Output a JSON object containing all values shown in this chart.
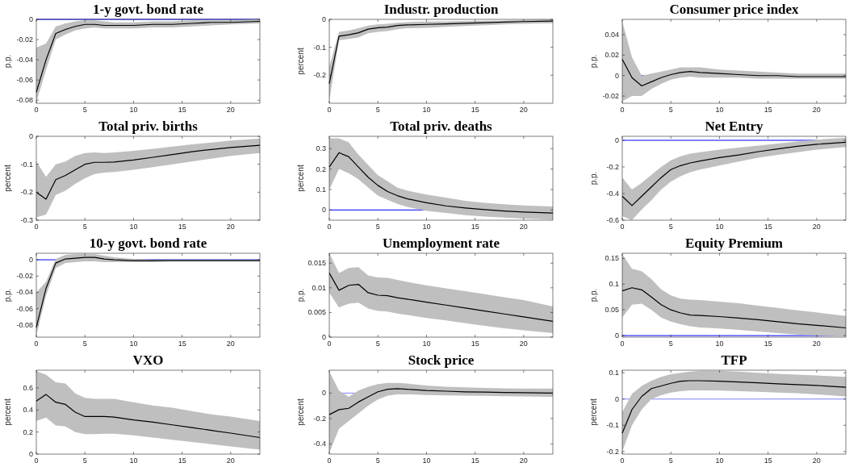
{
  "chart_data": [
    {
      "type": "line",
      "title": "1-y govt. bond rate",
      "ylabel": "p.p.",
      "x": [
        0,
        1,
        2,
        3,
        4,
        5,
        6,
        7,
        8,
        10,
        12,
        14,
        16,
        18,
        20,
        23
      ],
      "xlim": [
        0,
        23
      ],
      "xticks": [
        0,
        5,
        10,
        15,
        20
      ],
      "ylim": [
        -0.083,
        0
      ],
      "yticks": [
        -0.08,
        -0.06,
        -0.04,
        -0.02,
        0
      ],
      "ref_lines": [
        {
          "axis": "y",
          "value": 0,
          "color": "#0000ff"
        }
      ],
      "series": [
        {
          "color": "#000000",
          "values": [
            -0.072,
            -0.04,
            -0.014,
            -0.01,
            -0.007,
            -0.005,
            -0.005,
            -0.006,
            -0.006,
            -0.006,
            -0.005,
            -0.005,
            -0.004,
            -0.003,
            -0.003,
            -0.002
          ],
          "lower": [
            -0.082,
            -0.05,
            -0.02,
            -0.015,
            -0.011,
            -0.009,
            -0.008,
            -0.009,
            -0.009,
            -0.009,
            -0.008,
            -0.008,
            -0.007,
            -0.006,
            -0.005,
            -0.004
          ],
          "upper": [
            -0.028,
            -0.024,
            -0.007,
            -0.004,
            -0.002,
            -0.001,
            -0.001,
            -0.002,
            -0.003,
            -0.003,
            -0.002,
            -0.002,
            -0.001,
            -0.001,
            -0.001,
            0
          ]
        }
      ]
    },
    {
      "type": "line",
      "title": "Industr. production",
      "ylabel": "percent",
      "x": [
        0,
        1,
        2,
        3,
        4,
        5,
        6,
        7,
        8,
        10,
        12,
        14,
        16,
        18,
        20,
        23
      ],
      "xlim": [
        0,
        23
      ],
      "xticks": [
        0,
        5,
        10,
        15,
        20
      ],
      "ylim": [
        -0.3,
        0
      ],
      "yticks": [
        -0.2,
        -0.1,
        0
      ],
      "series": [
        {
          "color": "#000000",
          "values": [
            -0.23,
            -0.06,
            -0.055,
            -0.048,
            -0.035,
            -0.03,
            -0.028,
            -0.022,
            -0.02,
            -0.018,
            -0.016,
            -0.014,
            -0.012,
            -0.01,
            -0.008,
            -0.006
          ],
          "lower": [
            -0.29,
            -0.075,
            -0.07,
            -0.065,
            -0.05,
            -0.045,
            -0.042,
            -0.035,
            -0.032,
            -0.03,
            -0.027,
            -0.024,
            -0.021,
            -0.018,
            -0.016,
            -0.014
          ],
          "upper": [
            -0.17,
            -0.045,
            -0.04,
            -0.032,
            -0.022,
            -0.018,
            -0.016,
            -0.012,
            -0.01,
            -0.008,
            -0.007,
            -0.006,
            -0.005,
            -0.004,
            -0.002,
            0
          ]
        }
      ]
    },
    {
      "type": "line",
      "title": "Consumer price index",
      "ylabel": "p.p.",
      "x": [
        0,
        1,
        2,
        3,
        4,
        5,
        6,
        7,
        8,
        10,
        12,
        14,
        16,
        18,
        20,
        23
      ],
      "xlim": [
        0,
        23
      ],
      "xticks": [
        0,
        5,
        10,
        15,
        20
      ],
      "ylim": [
        -0.027,
        0.055
      ],
      "yticks": [
        -0.02,
        0,
        0.02,
        0.04
      ],
      "ref_lines": [
        {
          "axis": "y",
          "value": 0,
          "color": "#0000ff"
        }
      ],
      "series": [
        {
          "color": "#000000",
          "values": [
            0.016,
            -0.002,
            -0.01,
            -0.006,
            -0.002,
            0.001,
            0.003,
            0.004,
            0.003,
            0.002,
            0.001,
            0,
            0,
            -0.001,
            -0.001,
            -0.001
          ],
          "lower": [
            -0.025,
            -0.02,
            -0.02,
            -0.013,
            -0.008,
            -0.004,
            -0.002,
            -0.001,
            -0.002,
            -0.002,
            -0.002,
            -0.003,
            -0.003,
            -0.003,
            -0.003,
            -0.003
          ],
          "upper": [
            0.053,
            0.018,
            0,
            0.002,
            0.004,
            0.006,
            0.008,
            0.008,
            0.008,
            0.006,
            0.005,
            0.004,
            0.003,
            0.002,
            0.002,
            0.002
          ]
        }
      ]
    },
    {
      "type": "line",
      "title": "Total priv. births",
      "ylabel": "percent",
      "x": [
        0,
        1,
        2,
        3,
        4,
        5,
        6,
        7,
        8,
        10,
        12,
        14,
        16,
        18,
        20,
        23
      ],
      "xlim": [
        0,
        23
      ],
      "xticks": [
        0,
        5,
        10,
        15,
        20
      ],
      "ylim": [
        -0.3,
        0
      ],
      "yticks": [
        -0.3,
        -0.2,
        -0.1,
        0
      ],
      "series": [
        {
          "color": "#000000",
          "values": [
            -0.2,
            -0.225,
            -0.155,
            -0.14,
            -0.12,
            -0.1,
            -0.093,
            -0.093,
            -0.092,
            -0.085,
            -0.075,
            -0.065,
            -0.055,
            -0.047,
            -0.04,
            -0.032
          ],
          "lower": [
            -0.29,
            -0.28,
            -0.21,
            -0.195,
            -0.17,
            -0.15,
            -0.135,
            -0.13,
            -0.128,
            -0.12,
            -0.11,
            -0.1,
            -0.09,
            -0.08,
            -0.07,
            -0.06
          ],
          "upper": [
            -0.09,
            -0.145,
            -0.1,
            -0.09,
            -0.07,
            -0.06,
            -0.058,
            -0.06,
            -0.058,
            -0.052,
            -0.045,
            -0.037,
            -0.029,
            -0.022,
            -0.015,
            -0.008
          ]
        }
      ]
    },
    {
      "type": "line",
      "title": "Total priv. deaths",
      "ylabel": "percent",
      "x": [
        0,
        1,
        2,
        3,
        4,
        5,
        6,
        7,
        8,
        10,
        12,
        14,
        16,
        18,
        20,
        23
      ],
      "xlim": [
        0,
        23
      ],
      "xticks": [
        0,
        5,
        10,
        15,
        20
      ],
      "ylim": [
        -0.05,
        0.36
      ],
      "yticks": [
        0,
        0.1,
        0.2,
        0.3
      ],
      "ref_lines": [
        {
          "axis": "y",
          "value": 0,
          "color": "#0000ff"
        }
      ],
      "series": [
        {
          "color": "#000000",
          "values": [
            0.21,
            0.28,
            0.26,
            0.21,
            0.16,
            0.12,
            0.09,
            0.07,
            0.055,
            0.035,
            0.02,
            0.01,
            0.002,
            -0.005,
            -0.01,
            -0.015
          ],
          "lower": [
            0.1,
            0.2,
            0.18,
            0.15,
            0.11,
            0.07,
            0.05,
            0.03,
            0.015,
            -0.005,
            -0.015,
            -0.025,
            -0.032,
            -0.037,
            -0.042,
            -0.047
          ],
          "upper": [
            0.35,
            0.35,
            0.33,
            0.27,
            0.22,
            0.17,
            0.14,
            0.11,
            0.095,
            0.075,
            0.06,
            0.045,
            0.035,
            0.028,
            0.022,
            0.017
          ]
        }
      ]
    },
    {
      "type": "line",
      "title": "Net Entry",
      "ylabel": "p.p.",
      "x": [
        0,
        1,
        2,
        3,
        4,
        5,
        6,
        7,
        8,
        10,
        12,
        14,
        16,
        18,
        20,
        23
      ],
      "xlim": [
        0,
        23
      ],
      "xticks": [
        0,
        5,
        10,
        15,
        20
      ],
      "ylim": [
        -0.6,
        0.03
      ],
      "yticks": [
        -0.6,
        -0.4,
        -0.2,
        0
      ],
      "ref_lines": [
        {
          "axis": "y",
          "value": 0,
          "color": "#0000ff"
        }
      ],
      "series": [
        {
          "color": "#000000",
          "values": [
            -0.42,
            -0.49,
            -0.42,
            -0.35,
            -0.28,
            -0.22,
            -0.19,
            -0.17,
            -0.155,
            -0.13,
            -0.11,
            -0.085,
            -0.065,
            -0.045,
            -0.03,
            -0.015
          ],
          "lower": [
            -0.57,
            -0.6,
            -0.52,
            -0.45,
            -0.37,
            -0.31,
            -0.27,
            -0.24,
            -0.22,
            -0.19,
            -0.16,
            -0.13,
            -0.11,
            -0.09,
            -0.07,
            -0.05
          ],
          "upper": [
            -0.28,
            -0.37,
            -0.32,
            -0.26,
            -0.2,
            -0.15,
            -0.12,
            -0.1,
            -0.09,
            -0.07,
            -0.055,
            -0.04,
            -0.025,
            -0.01,
            0.005,
            0.02
          ]
        }
      ]
    },
    {
      "type": "line",
      "title": "10-y govt. bond rate",
      "ylabel": "p.p.",
      "x": [
        0,
        1,
        2,
        3,
        4,
        5,
        6,
        7,
        8,
        10,
        12,
        14,
        16,
        18,
        20,
        23
      ],
      "xlim": [
        0,
        23
      ],
      "xticks": [
        0,
        5,
        10,
        15,
        20
      ],
      "ylim": [
        -0.095,
        0.008
      ],
      "yticks": [
        -0.08,
        -0.06,
        -0.04,
        -0.02,
        0
      ],
      "ref_lines": [
        {
          "axis": "y",
          "value": 0,
          "color": "#0000ff"
        }
      ],
      "series": [
        {
          "color": "#000000",
          "values": [
            -0.083,
            -0.035,
            -0.004,
            0.001,
            0.002,
            0.003,
            0.003,
            0.001,
            0,
            -0.001,
            -0.001,
            -0.001,
            -0.001,
            -0.001,
            -0.001,
            -0.001
          ],
          "lower": [
            -0.093,
            -0.044,
            -0.01,
            -0.004,
            -0.003,
            -0.002,
            -0.002,
            -0.003,
            -0.003,
            -0.003,
            -0.003,
            -0.002,
            -0.002,
            -0.002,
            -0.002,
            -0.002
          ],
          "upper": [
            -0.04,
            -0.027,
            0.001,
            0.006,
            0.007,
            0.007,
            0.007,
            0.005,
            0.003,
            0.001,
            0,
            0,
            0,
            0,
            0,
            0
          ]
        }
      ]
    },
    {
      "type": "line",
      "title": "Unemployment rate",
      "ylabel": "p.p.",
      "x": [
        0,
        1,
        2,
        3,
        4,
        5,
        6,
        7,
        8,
        10,
        12,
        14,
        16,
        18,
        20,
        23
      ],
      "xlim": [
        0,
        23
      ],
      "xticks": [
        0,
        5,
        10,
        15,
        20
      ],
      "ylim": [
        0,
        0.017
      ],
      "yticks": [
        0,
        0.005,
        0.01,
        0.015
      ],
      "series": [
        {
          "color": "#000000",
          "values": [
            0.013,
            0.0095,
            0.0105,
            0.0107,
            0.009,
            0.0085,
            0.0084,
            0.008,
            0.0077,
            0.0071,
            0.0065,
            0.0059,
            0.0053,
            0.0047,
            0.0041,
            0.0032
          ],
          "lower": [
            0.009,
            0.006,
            0.0068,
            0.007,
            0.0058,
            0.0053,
            0.0052,
            0.0048,
            0.0045,
            0.0039,
            0.0034,
            0.0028,
            0.0023,
            0.0018,
            0.0014,
            0.0008
          ],
          "upper": [
            0.017,
            0.013,
            0.014,
            0.0142,
            0.0125,
            0.0121,
            0.012,
            0.0116,
            0.0112,
            0.0105,
            0.0099,
            0.0093,
            0.0087,
            0.0081,
            0.0075,
            0.0062
          ]
        }
      ]
    },
    {
      "type": "line",
      "title": "Equity Premium",
      "ylabel": "p.p.",
      "x": [
        0,
        1,
        2,
        3,
        4,
        5,
        6,
        7,
        8,
        10,
        12,
        14,
        16,
        18,
        20,
        23
      ],
      "xlim": [
        0,
        23
      ],
      "xticks": [
        0,
        5,
        10,
        15,
        20
      ],
      "ylim": [
        -0.003,
        0.16
      ],
      "yticks": [
        0,
        0.05,
        0.1,
        0.15
      ],
      "ref_lines": [
        {
          "axis": "y",
          "value": 0,
          "color": "#0000ff"
        }
      ],
      "series": [
        {
          "color": "#000000",
          "values": [
            0.087,
            0.093,
            0.089,
            0.075,
            0.06,
            0.05,
            0.044,
            0.04,
            0.039,
            0.037,
            0.034,
            0.031,
            0.027,
            0.023,
            0.02,
            0.015
          ],
          "lower": [
            0.035,
            0.06,
            0.062,
            0.05,
            0.035,
            0.027,
            0.022,
            0.018,
            0.016,
            0.014,
            0.011,
            0.008,
            0.005,
            0.002,
            0,
            -0.002
          ],
          "upper": [
            0.158,
            0.13,
            0.125,
            0.11,
            0.09,
            0.078,
            0.072,
            0.07,
            0.069,
            0.066,
            0.063,
            0.058,
            0.054,
            0.049,
            0.045,
            0.038
          ]
        }
      ]
    },
    {
      "type": "line",
      "title": "VXO",
      "ylabel": "percent",
      "x": [
        0,
        1,
        2,
        3,
        4,
        5,
        6,
        7,
        8,
        10,
        12,
        14,
        16,
        18,
        20,
        23
      ],
      "xlim": [
        0,
        23
      ],
      "xticks": [
        0,
        5,
        10,
        15,
        20
      ],
      "ylim": [
        0,
        0.76
      ],
      "yticks": [
        0,
        0.2,
        0.4,
        0.6
      ],
      "series": [
        {
          "color": "#000000",
          "values": [
            0.48,
            0.54,
            0.47,
            0.45,
            0.38,
            0.34,
            0.34,
            0.34,
            0.335,
            0.31,
            0.29,
            0.265,
            0.24,
            0.215,
            0.19,
            0.15
          ],
          "lower": [
            0.3,
            0.33,
            0.26,
            0.25,
            0.2,
            0.18,
            0.18,
            0.185,
            0.185,
            0.17,
            0.15,
            0.13,
            0.11,
            0.09,
            0.07,
            0.04
          ],
          "upper": [
            0.75,
            0.72,
            0.65,
            0.64,
            0.55,
            0.51,
            0.5,
            0.5,
            0.5,
            0.47,
            0.44,
            0.42,
            0.39,
            0.36,
            0.34,
            0.3
          ]
        }
      ]
    },
    {
      "type": "line",
      "title": "Stock price",
      "ylabel": "percent",
      "x": [
        0,
        1,
        2,
        3,
        4,
        5,
        6,
        7,
        8,
        10,
        12,
        14,
        16,
        18,
        20,
        23
      ],
      "xlim": [
        0,
        23
      ],
      "xticks": [
        0,
        5,
        10,
        15,
        20
      ],
      "ylim": [
        -0.48,
        0.18
      ],
      "yticks": [
        -0.4,
        -0.2,
        0
      ],
      "ref_lines": [
        {
          "axis": "y",
          "value": 0,
          "color": "#8080ff"
        }
      ],
      "series": [
        {
          "color": "#000000",
          "values": [
            -0.17,
            -0.13,
            -0.12,
            -0.07,
            -0.03,
            0.01,
            0.03,
            0.035,
            0.03,
            0.02,
            0.015,
            0.01,
            0.008,
            0.005,
            0.003,
            0
          ],
          "lower": [
            -0.47,
            -0.28,
            -0.22,
            -0.16,
            -0.1,
            -0.05,
            -0.02,
            -0.01,
            -0.01,
            -0.015,
            -0.018,
            -0.02,
            -0.022,
            -0.024,
            -0.026,
            -0.03
          ],
          "upper": [
            0.17,
            0.02,
            -0.03,
            0.02,
            0.05,
            0.07,
            0.08,
            0.08,
            0.075,
            0.06,
            0.05,
            0.045,
            0.04,
            0.037,
            0.035,
            0.035
          ]
        }
      ]
    },
    {
      "type": "line",
      "title": "TFP",
      "ylabel": "percent",
      "x": [
        0,
        1,
        2,
        3,
        4,
        5,
        6,
        7,
        8,
        10,
        12,
        14,
        16,
        18,
        20,
        23
      ],
      "xlim": [
        0,
        23
      ],
      "xticks": [
        0,
        5,
        10,
        15,
        20
      ],
      "ylim": [
        -0.21,
        0.11
      ],
      "yticks": [
        -0.2,
        -0.1,
        0,
        0.1
      ],
      "ref_lines": [
        {
          "axis": "y",
          "value": 0,
          "color": "#8080ff"
        }
      ],
      "series": [
        {
          "color": "#000000",
          "values": [
            -0.13,
            -0.04,
            0.01,
            0.04,
            0.05,
            0.06,
            0.068,
            0.07,
            0.07,
            0.068,
            0.065,
            0.062,
            0.058,
            0.055,
            0.052,
            0.045
          ],
          "lower": [
            -0.2,
            -0.1,
            -0.04,
            0,
            0.015,
            0.025,
            0.03,
            0.033,
            0.033,
            0.032,
            0.03,
            0.028,
            0.025,
            0.022,
            0.018,
            0.01
          ],
          "upper": [
            -0.05,
            0.02,
            0.05,
            0.07,
            0.085,
            0.095,
            0.1,
            0.105,
            0.108,
            0.108,
            0.105,
            0.1,
            0.096,
            0.093,
            0.09,
            0.085
          ]
        }
      ]
    }
  ]
}
